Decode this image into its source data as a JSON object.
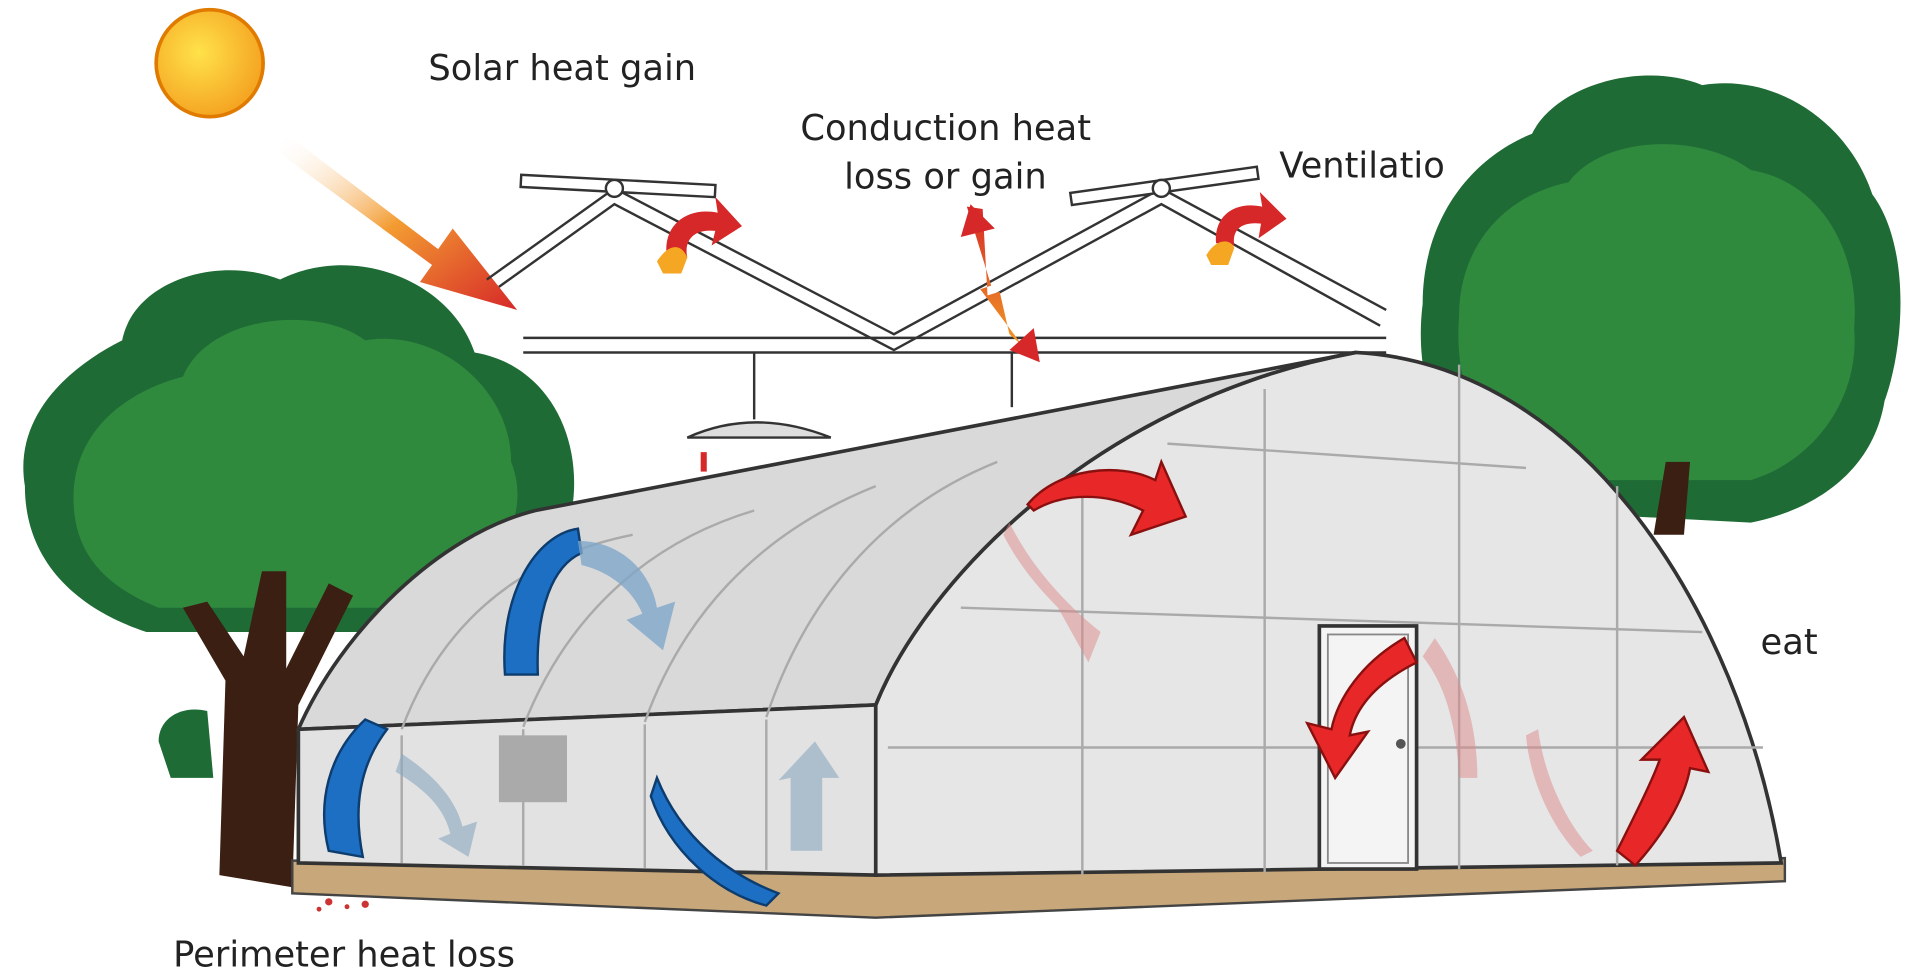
{
  "labels": {
    "solar": "Solar heat gain",
    "conduction": [
      "Conduction heat",
      "loss or gain"
    ],
    "ventilation": "Ventilatio",
    "heat": "eat",
    "perimeter": "Perimeter heat loss"
  }
}
